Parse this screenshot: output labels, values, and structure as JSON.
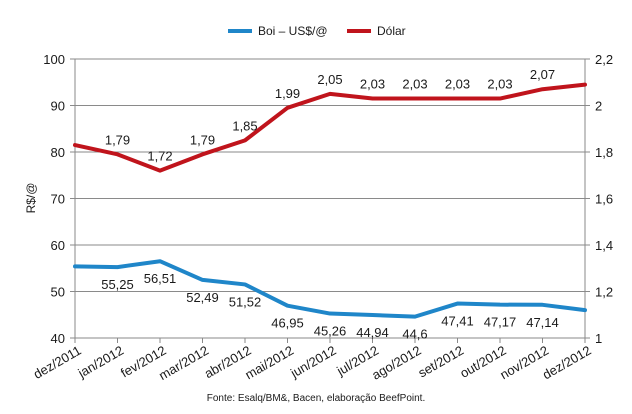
{
  "chart_data": {
    "type": "line",
    "source": "Fonte: Esalq/BM&, Bacen, elaboração BeefPoint.",
    "categories": [
      "dez/2011",
      "jan/2012",
      "fev/2012",
      "mar/2012",
      "abr/2012",
      "mai/2012",
      "jun/2012",
      "jul/2012",
      "ago/2012",
      "set/2012",
      "out/2012",
      "nov/2012",
      "dez/2012"
    ],
    "left_axis": {
      "label": "R$/@",
      "range": [
        40,
        100
      ],
      "ticks": [
        "40",
        "50",
        "60",
        "70",
        "80",
        "90",
        "100"
      ]
    },
    "right_axis": {
      "range": [
        1,
        2.2
      ],
      "ticks": [
        "1",
        "1,2",
        "1,4",
        "1,6",
        "1,8",
        "2",
        "2,2"
      ]
    },
    "grid": true,
    "legend_position": "top",
    "series": [
      {
        "name": "Boi – US$/@",
        "axis": "left",
        "color": "#1f86c9",
        "values": [
          55.4,
          55.25,
          56.51,
          52.49,
          51.52,
          46.95,
          45.26,
          44.94,
          44.6,
          47.41,
          47.17,
          47.14,
          46.0
        ],
        "labels": [
          "",
          "55,25",
          "56,51",
          "52,49",
          "51,52",
          "46,95",
          "45,26",
          "44,94",
          "44,6",
          "47,41",
          "47,17",
          "47,14",
          ""
        ]
      },
      {
        "name": "Dólar",
        "axis": "right",
        "color": "#c0141c",
        "values": [
          1.83,
          1.79,
          1.72,
          1.79,
          1.85,
          1.99,
          2.05,
          2.03,
          2.03,
          2.03,
          2.03,
          2.07,
          2.09
        ],
        "labels": [
          "",
          "1,79",
          "1,72",
          "1,79",
          "1,85",
          "1,99",
          "2,05",
          "2,03",
          "2,03",
          "2,03",
          "2,03",
          "2,07",
          ""
        ]
      }
    ]
  }
}
